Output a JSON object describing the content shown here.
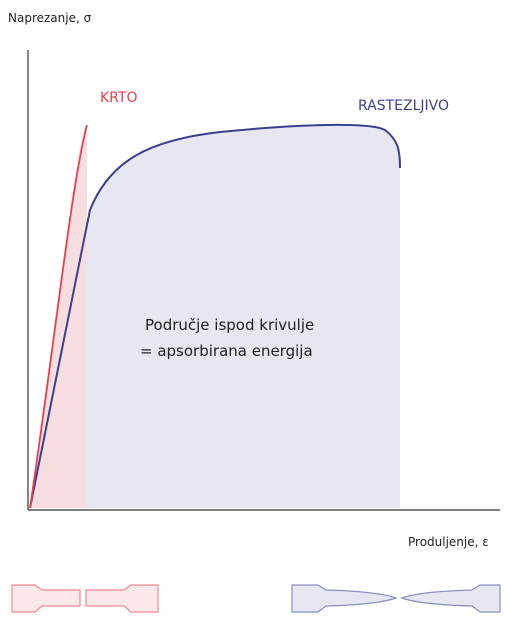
{
  "axes": {
    "y_label": "Naprezanje, σ",
    "x_label": "Produljenje, ε"
  },
  "curves": [
    {
      "label": "KRTO"
    },
    {
      "label": "RASTEZLJIVO"
    }
  ],
  "annotation": {
    "lines": [
      "Područje ispod krivulje",
      "= apsorbirana energija"
    ]
  }
}
